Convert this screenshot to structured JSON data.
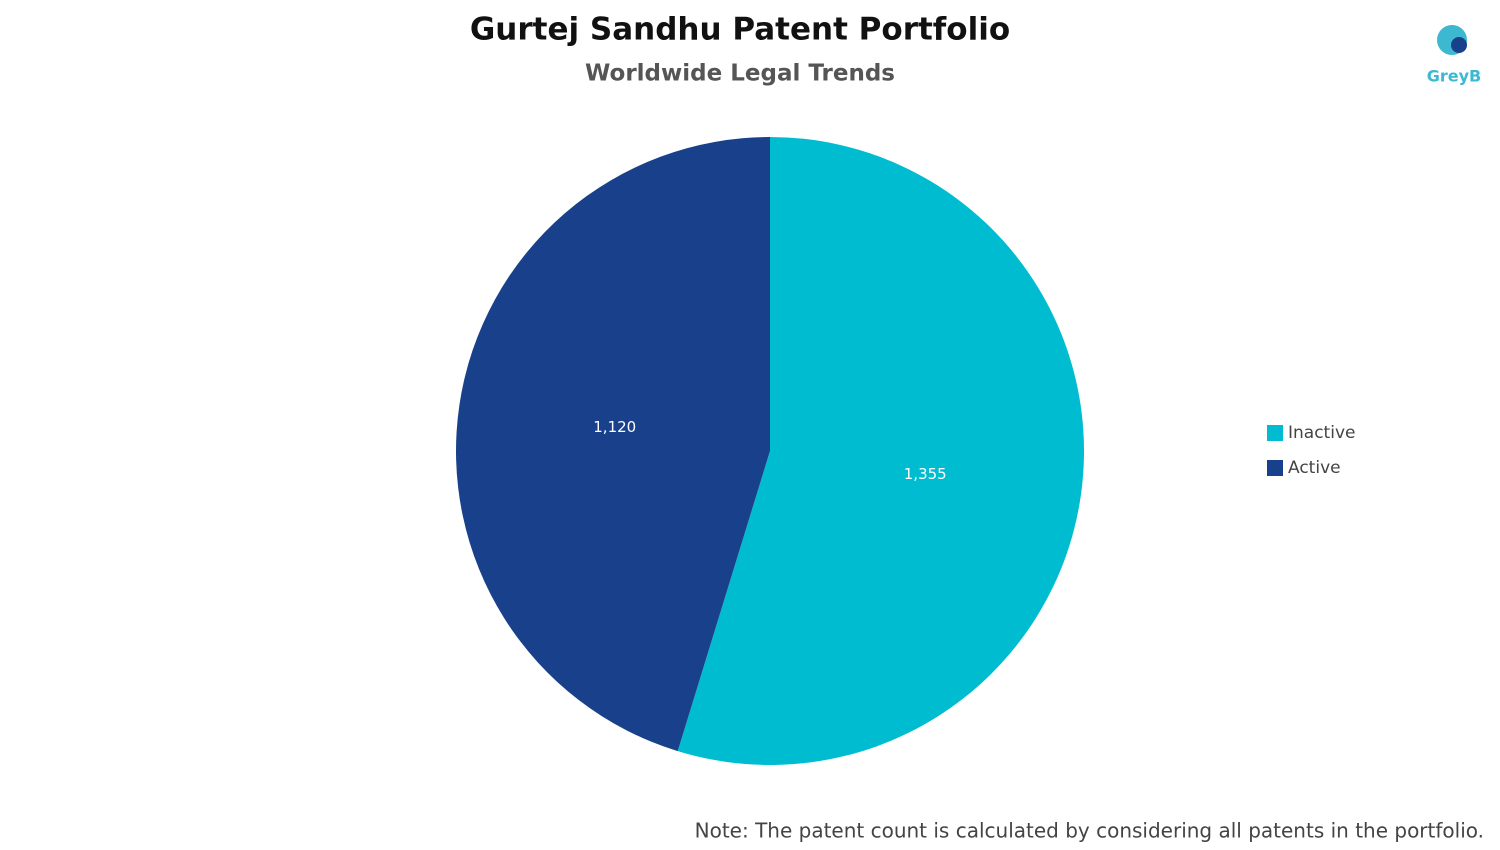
{
  "chart_data": {
    "type": "pie",
    "title": "Gurtej Sandhu Patent Portfolio",
    "subtitle": "Worldwide Legal Trends",
    "categories": [
      "Inactive",
      "Active"
    ],
    "values": [
      1355,
      1120
    ],
    "value_labels": [
      "1,355",
      "1,120"
    ],
    "colors": [
      "#00bcd0",
      "#19418b"
    ],
    "legend": "right",
    "note": "Note: The patent count is calculated by considering all patents in the portfolio."
  },
  "logo": "GreyB"
}
